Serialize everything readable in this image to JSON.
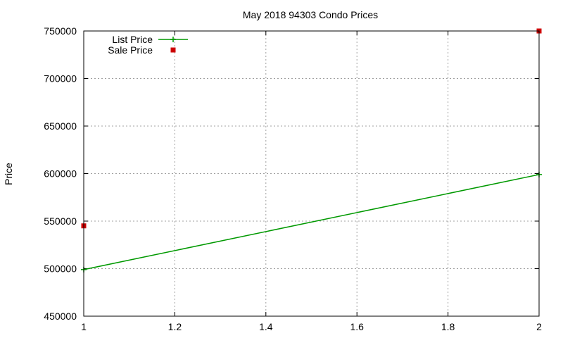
{
  "chart_data": {
    "type": "line",
    "title": "May 2018 94303 Condo Prices",
    "xlabel": "",
    "ylabel": "Price",
    "xlim": [
      1,
      2
    ],
    "ylim": [
      450000,
      750000
    ],
    "x_ticks": [
      "1",
      "1.2",
      "1.4",
      "1.6",
      "1.8",
      "2"
    ],
    "y_ticks": [
      "450000",
      "500000",
      "550000",
      "600000",
      "650000",
      "700000",
      "750000"
    ],
    "grid": true,
    "legend_position": "top-left",
    "series": [
      {
        "name": "List Price",
        "style": "linespoints",
        "color": "#009900",
        "x": [
          1,
          2
        ],
        "y": [
          499000,
          599000
        ]
      },
      {
        "name": "Sale Price",
        "style": "points",
        "color": "#cc0000",
        "x": [
          1,
          2
        ],
        "y": [
          545000,
          750000
        ]
      }
    ]
  }
}
